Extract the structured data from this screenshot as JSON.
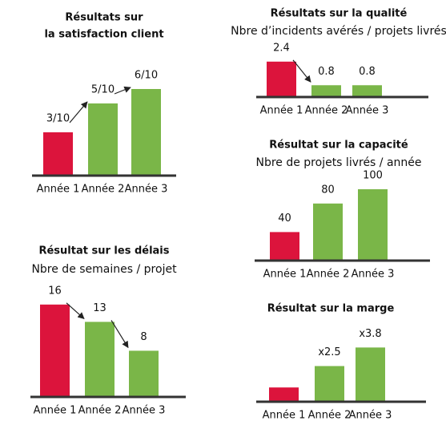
{
  "chart_data": [
    {
      "type": "bar",
      "title": [
        "Résultats sur",
        "la satisfaction client"
      ],
      "categories": [
        "Année 1",
        "Année 2",
        "Année 3"
      ],
      "values": [
        3,
        5,
        6
      ],
      "value_labels": [
        "3/10",
        "5/10",
        "6/10"
      ],
      "colors": [
        "#dc143c",
        "#7ab648",
        "#7ab648"
      ]
    },
    {
      "type": "bar",
      "title": [
        "Résultats sur la qualité"
      ],
      "subtitle": "Nbre d’incidents avérés / projets livrés",
      "categories": [
        "Année 1",
        "Année 2",
        "Année 3"
      ],
      "values": [
        2.4,
        0.8,
        0.8
      ],
      "colors": [
        "#dc143c",
        "#7ab648",
        "#7ab648"
      ]
    },
    {
      "type": "bar",
      "title": [
        "Résultat sur la capacité"
      ],
      "subtitle": "Nbre de projets livrés / année",
      "categories": [
        "Année 1",
        "Année 2",
        "Année 3"
      ],
      "values": [
        40,
        80,
        100
      ],
      "colors": [
        "#dc143c",
        "#7ab648",
        "#7ab648"
      ]
    },
    {
      "type": "bar",
      "title": [
        "Résultat sur les délais"
      ],
      "subtitle": "Nbre de semaines / projet",
      "categories": [
        "Année 1",
        "Année 2",
        "Année 3"
      ],
      "values": [
        16,
        13,
        8
      ],
      "colors": [
        "#dc143c",
        "#7ab648",
        "#7ab648"
      ]
    },
    {
      "type": "bar",
      "title": [
        "Résultat sur la marge"
      ],
      "categories": [
        "Année 1",
        "Année 2",
        "Année 3"
      ],
      "values": [
        1,
        2.5,
        3.8
      ],
      "value_labels": [
        null,
        "x2.5",
        "x3.8"
      ],
      "colors": [
        "#dc143c",
        "#7ab648",
        "#7ab648"
      ]
    }
  ]
}
